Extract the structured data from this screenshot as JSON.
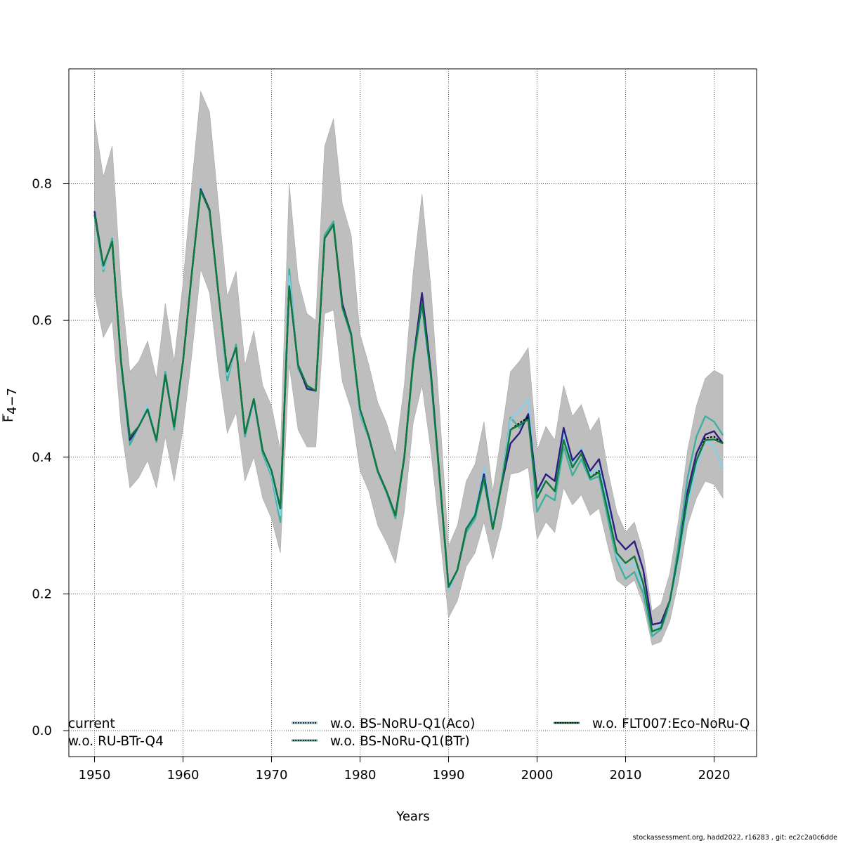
{
  "footer": "stockassessment.org, hadd2022, r16283 , git: ec2c2a0c6dde",
  "chart_data": {
    "type": "line",
    "title": "",
    "xlabel": "Years",
    "ylabel": "F̅ 4−7",
    "ylabel_main": "F",
    "ylabel_sub": "4−7",
    "xlim": [
      1947.1,
      2024.8
    ],
    "ylim": [
      -0.038,
      0.968
    ],
    "xticks": [
      1950,
      1960,
      1970,
      1980,
      1990,
      2000,
      2010,
      2020
    ],
    "yticks": [
      0.0,
      0.2,
      0.4,
      0.6,
      0.8
    ],
    "ytick_labels": [
      "0.0",
      "0.2",
      "0.4",
      "0.6",
      "0.8"
    ],
    "grid": true,
    "legend_position": "bottom",
    "x": [
      1950,
      1951,
      1952,
      1953,
      1954,
      1955,
      1956,
      1957,
      1958,
      1959,
      1960,
      1961,
      1962,
      1963,
      1964,
      1965,
      1966,
      1967,
      1968,
      1969,
      1970,
      1971,
      1972,
      1973,
      1974,
      1975,
      1976,
      1977,
      1978,
      1979,
      1980,
      1981,
      1982,
      1983,
      1984,
      1985,
      1986,
      1987,
      1988,
      1989,
      1990,
      1991,
      1992,
      1993,
      1994,
      1995,
      1996,
      1997,
      1998,
      1999,
      2000,
      2001,
      2002,
      2003,
      2004,
      2005,
      2006,
      2007,
      2008,
      2009,
      2010,
      2011,
      2012,
      2013,
      2014,
      2015,
      2016,
      2017,
      2018,
      2019,
      2020,
      2021
    ],
    "band": {
      "name": "current confidence interval",
      "color": "#bebebe",
      "lower": [
        0.64,
        0.575,
        0.6,
        0.445,
        0.355,
        0.37,
        0.395,
        0.355,
        0.43,
        0.365,
        0.44,
        0.55,
        0.675,
        0.64,
        0.53,
        0.435,
        0.465,
        0.365,
        0.4,
        0.34,
        0.31,
        0.26,
        0.535,
        0.44,
        0.415,
        0.415,
        0.61,
        0.615,
        0.51,
        0.47,
        0.38,
        0.35,
        0.3,
        0.275,
        0.245,
        0.32,
        0.45,
        0.505,
        0.41,
        0.29,
        0.165,
        0.19,
        0.24,
        0.26,
        0.305,
        0.25,
        0.3,
        0.375,
        0.378,
        0.385,
        0.28,
        0.305,
        0.29,
        0.355,
        0.33,
        0.345,
        0.315,
        0.325,
        0.27,
        0.22,
        0.21,
        0.22,
        0.185,
        0.125,
        0.13,
        0.16,
        0.22,
        0.3,
        0.34,
        0.365,
        0.36,
        0.34
      ],
      "upper": [
        0.895,
        0.81,
        0.855,
        0.65,
        0.525,
        0.54,
        0.57,
        0.515,
        0.625,
        0.54,
        0.655,
        0.8,
        0.935,
        0.905,
        0.77,
        0.635,
        0.672,
        0.535,
        0.585,
        0.505,
        0.475,
        0.41,
        0.8,
        0.66,
        0.61,
        0.6,
        0.855,
        0.895,
        0.77,
        0.725,
        0.58,
        0.535,
        0.48,
        0.45,
        0.405,
        0.505,
        0.67,
        0.785,
        0.65,
        0.465,
        0.27,
        0.3,
        0.365,
        0.39,
        0.452,
        0.35,
        0.435,
        0.525,
        0.54,
        0.56,
        0.41,
        0.445,
        0.425,
        0.505,
        0.46,
        0.477,
        0.438,
        0.458,
        0.38,
        0.32,
        0.29,
        0.305,
        0.26,
        0.175,
        0.185,
        0.23,
        0.31,
        0.41,
        0.475,
        0.515,
        0.527,
        0.52
      ]
    },
    "series": [
      {
        "name": "current",
        "color": "#000000",
        "values": [
          0.755,
          0.68,
          0.715,
          0.54,
          0.43,
          0.445,
          0.47,
          0.425,
          0.52,
          0.445,
          0.54,
          0.67,
          0.79,
          0.76,
          0.64,
          0.525,
          0.56,
          0.435,
          0.485,
          0.41,
          0.38,
          0.325,
          0.65,
          0.535,
          0.505,
          0.497,
          0.72,
          0.74,
          0.62,
          0.58,
          0.47,
          0.43,
          0.38,
          0.35,
          0.315,
          0.4,
          0.54,
          0.625,
          0.52,
          0.37,
          0.21,
          0.235,
          0.295,
          0.315,
          0.37,
          0.295,
          0.36,
          0.44,
          0.45,
          0.458,
          0.34,
          0.365,
          0.35,
          0.425,
          0.385,
          0.405,
          0.37,
          0.38,
          0.32,
          0.26,
          0.245,
          0.255,
          0.215,
          0.145,
          0.15,
          0.19,
          0.26,
          0.34,
          0.395,
          0.428,
          0.43,
          0.42
        ]
      },
      {
        "name": "w.o. RU-BTr-Q4",
        "color": "#2d1e82",
        "values": [
          0.76,
          0.68,
          0.715,
          0.54,
          0.425,
          0.445,
          0.47,
          0.425,
          0.52,
          0.445,
          0.54,
          0.67,
          0.792,
          0.762,
          0.64,
          0.525,
          0.56,
          0.435,
          0.485,
          0.41,
          0.38,
          0.325,
          0.65,
          0.535,
          0.5,
          0.497,
          0.72,
          0.74,
          0.625,
          0.58,
          0.47,
          0.43,
          0.38,
          0.35,
          0.315,
          0.4,
          0.54,
          0.64,
          0.525,
          0.37,
          0.21,
          0.235,
          0.295,
          0.315,
          0.375,
          0.295,
          0.36,
          0.42,
          0.435,
          0.463,
          0.35,
          0.375,
          0.365,
          0.443,
          0.395,
          0.41,
          0.38,
          0.397,
          0.34,
          0.28,
          0.265,
          0.277,
          0.235,
          0.155,
          0.158,
          0.19,
          0.26,
          0.35,
          0.405,
          0.433,
          0.438,
          0.42
        ]
      },
      {
        "name": "w.o. BS-NoRU-Q1(Aco)",
        "color": "#87ceeb",
        "values": [
          0.76,
          0.675,
          0.715,
          0.54,
          0.425,
          0.445,
          0.475,
          0.425,
          0.52,
          0.445,
          0.54,
          0.67,
          0.795,
          0.762,
          0.64,
          0.52,
          0.56,
          0.435,
          0.48,
          0.41,
          0.375,
          0.315,
          0.665,
          0.535,
          0.5,
          0.497,
          0.72,
          0.74,
          0.62,
          0.58,
          0.465,
          0.43,
          0.38,
          0.35,
          0.315,
          0.4,
          0.54,
          0.62,
          0.515,
          0.37,
          0.205,
          0.235,
          0.295,
          0.32,
          0.385,
          0.3,
          0.36,
          0.455,
          0.467,
          0.485,
          0.345,
          0.365,
          0.35,
          0.435,
          0.39,
          0.413,
          0.375,
          0.385,
          0.33,
          0.255,
          0.235,
          0.245,
          0.21,
          0.145,
          0.155,
          0.185,
          0.25,
          0.33,
          0.385,
          0.425,
          0.415,
          0.383
        ]
      },
      {
        "name": "w.o. BS-NoRu-Q1(BTr)",
        "color": "#3fb0a0",
        "values": [
          0.755,
          0.672,
          0.72,
          0.535,
          0.418,
          0.445,
          0.47,
          0.422,
          0.525,
          0.44,
          0.54,
          0.67,
          0.79,
          0.762,
          0.64,
          0.512,
          0.565,
          0.43,
          0.483,
          0.405,
          0.372,
          0.305,
          0.675,
          0.53,
          0.503,
          0.497,
          0.725,
          0.745,
          0.618,
          0.577,
          0.462,
          0.428,
          0.378,
          0.348,
          0.31,
          0.398,
          0.535,
          0.62,
          0.515,
          0.365,
          0.205,
          0.235,
          0.29,
          0.31,
          0.365,
          0.295,
          0.365,
          0.458,
          0.443,
          0.462,
          0.32,
          0.345,
          0.337,
          0.415,
          0.373,
          0.397,
          0.367,
          0.372,
          0.31,
          0.25,
          0.222,
          0.232,
          0.2,
          0.138,
          0.148,
          0.185,
          0.275,
          0.37,
          0.43,
          0.46,
          0.452,
          0.432
        ]
      },
      {
        "name": "w.o. FLT007:Eco-NoRu-Q",
        "color": "#0f7a3c",
        "values": [
          0.755,
          0.68,
          0.715,
          0.54,
          0.43,
          0.445,
          0.47,
          0.425,
          0.52,
          0.445,
          0.54,
          0.67,
          0.79,
          0.76,
          0.64,
          0.525,
          0.56,
          0.435,
          0.485,
          0.41,
          0.38,
          0.325,
          0.65,
          0.535,
          0.505,
          0.497,
          0.72,
          0.74,
          0.62,
          0.58,
          0.47,
          0.43,
          0.38,
          0.35,
          0.315,
          0.4,
          0.54,
          0.625,
          0.52,
          0.37,
          0.21,
          0.235,
          0.295,
          0.315,
          0.37,
          0.295,
          0.36,
          0.44,
          0.447,
          0.455,
          0.34,
          0.365,
          0.35,
          0.425,
          0.385,
          0.405,
          0.37,
          0.378,
          0.32,
          0.26,
          0.245,
          0.255,
          0.215,
          0.145,
          0.15,
          0.19,
          0.26,
          0.34,
          0.395,
          0.425,
          0.426,
          0.42
        ]
      }
    ],
    "legend": [
      {
        "label": "current",
        "color": "#000000",
        "show_swatch": false
      },
      {
        "label": "w.o. RU-BTr-Q4",
        "color": "#2d1e82",
        "show_swatch": false
      },
      {
        "label": "w.o. BS-NoRU-Q1(Aco)",
        "color": "#87ceeb",
        "show_swatch": true
      },
      {
        "label": "w.o. BS-NoRu-Q1(BTr)",
        "color": "#3fb0a0",
        "show_swatch": true
      },
      {
        "label": "w.o. FLT007:Eco-NoRu-Q",
        "color": "#0f7a3c",
        "show_swatch": true
      }
    ]
  }
}
